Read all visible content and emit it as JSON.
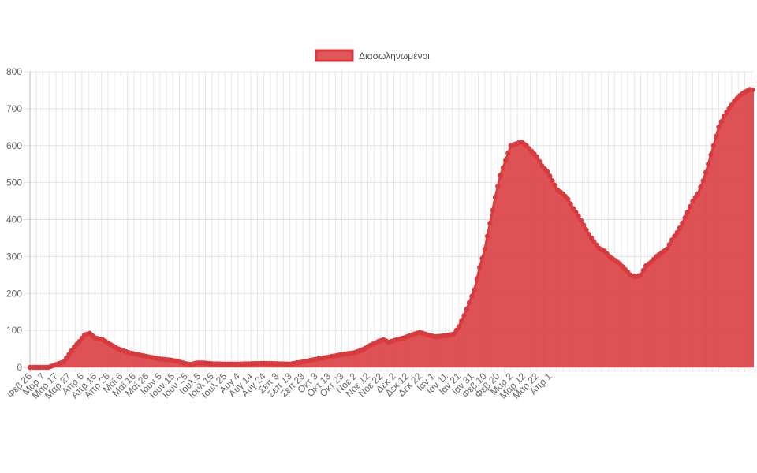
{
  "chart_data": {
    "type": "area",
    "title": "",
    "xlabel": "",
    "ylabel": "",
    "ylim": [
      0,
      800
    ],
    "y_ticks": [
      "0",
      "100",
      "200",
      "300",
      "400",
      "500",
      "600",
      "700",
      "800"
    ],
    "grid": true,
    "legend_position": "top-center",
    "x_tick_labels": [
      "Φεβ 26",
      "Μαρ 7",
      "Μαρ 17",
      "Μαρ 27",
      "Απρ 6",
      "Απρ 16",
      "Απρ 26",
      "Μαΐ 6",
      "Μαΐ 16",
      "Μαΐ 26",
      "Ιουν 5",
      "Ιουν 15",
      "Ιουν 25",
      "Ιουλ 5",
      "Ιουλ 15",
      "Ιουλ 25",
      "Αυγ 4",
      "Αυγ 14",
      "Αυγ 24",
      "Σεπ 3",
      "Σεπ 13",
      "Σεπ 23",
      "Οκτ 3",
      "Οκτ 13",
      "Οκτ 23",
      "Νοε 2",
      "Νοε 12",
      "Νοε 22",
      "Δεκ 2",
      "Δεκ 12",
      "Δεκ 22",
      "Ιαν 1",
      "Ιαν 11",
      "Ιαν 21",
      "Ιαν 31",
      "Φεβ 10",
      "Φεβ 20",
      "Μαρ 2",
      "Μαρ 12",
      "Μαρ 22",
      "Απρ 1"
    ],
    "series": [
      {
        "name": "Διασωληνωμένοι",
        "color": "#d93a3e",
        "fill": "#d93a3e",
        "anchors": [
          [
            0,
            0
          ],
          [
            8,
            0
          ],
          [
            14,
            0
          ],
          [
            18,
            5
          ],
          [
            22,
            10
          ],
          [
            26,
            15
          ],
          [
            30,
            35
          ],
          [
            34,
            55
          ],
          [
            38,
            70
          ],
          [
            42,
            88
          ],
          [
            46,
            92
          ],
          [
            50,
            80
          ],
          [
            56,
            75
          ],
          [
            62,
            62
          ],
          [
            68,
            50
          ],
          [
            76,
            40
          ],
          [
            84,
            34
          ],
          [
            92,
            28
          ],
          [
            100,
            23
          ],
          [
            108,
            20
          ],
          [
            114,
            16
          ],
          [
            120,
            10
          ],
          [
            124,
            8
          ],
          [
            128,
            12
          ],
          [
            134,
            12
          ],
          [
            140,
            10
          ],
          [
            150,
            9
          ],
          [
            160,
            9
          ],
          [
            170,
            10
          ],
          [
            180,
            11
          ],
          [
            190,
            10
          ],
          [
            200,
            9
          ],
          [
            210,
            15
          ],
          [
            220,
            22
          ],
          [
            230,
            28
          ],
          [
            240,
            35
          ],
          [
            250,
            40
          ],
          [
            256,
            48
          ],
          [
            262,
            60
          ],
          [
            268,
            70
          ],
          [
            272,
            75
          ],
          [
            276,
            68
          ],
          [
            282,
            75
          ],
          [
            288,
            80
          ],
          [
            294,
            88
          ],
          [
            300,
            95
          ],
          [
            306,
            88
          ],
          [
            312,
            83
          ],
          [
            320,
            86
          ],
          [
            326,
            90
          ],
          [
            330,
            110
          ],
          [
            334,
            140
          ],
          [
            338,
            175
          ],
          [
            342,
            210
          ],
          [
            346,
            270
          ],
          [
            350,
            320
          ],
          [
            354,
            390
          ],
          [
            358,
            460
          ],
          [
            362,
            520
          ],
          [
            366,
            560
          ],
          [
            370,
            600
          ],
          [
            374,
            605
          ],
          [
            378,
            610
          ],
          [
            382,
            600
          ],
          [
            386,
            585
          ],
          [
            390,
            570
          ],
          [
            394,
            545
          ],
          [
            398,
            530
          ],
          [
            402,
            505
          ],
          [
            406,
            480
          ],
          [
            410,
            470
          ],
          [
            414,
            455
          ],
          [
            418,
            430
          ],
          [
            422,
            410
          ],
          [
            426,
            385
          ],
          [
            430,
            360
          ],
          [
            434,
            340
          ],
          [
            438,
            322
          ],
          [
            442,
            315
          ],
          [
            446,
            300
          ],
          [
            450,
            290
          ],
          [
            454,
            280
          ],
          [
            458,
            265
          ],
          [
            462,
            250
          ],
          [
            466,
            245
          ],
          [
            470,
            250
          ],
          [
            474,
            275
          ],
          [
            478,
            285
          ],
          [
            482,
            300
          ],
          [
            486,
            310
          ],
          [
            490,
            320
          ],
          [
            494,
            345
          ],
          [
            498,
            365
          ],
          [
            502,
            390
          ],
          [
            506,
            420
          ],
          [
            510,
            450
          ],
          [
            514,
            470
          ],
          [
            518,
            505
          ],
          [
            522,
            550
          ],
          [
            526,
            600
          ],
          [
            530,
            650
          ],
          [
            534,
            680
          ],
          [
            538,
            700
          ],
          [
            542,
            720
          ],
          [
            546,
            735
          ],
          [
            550,
            745
          ],
          [
            554,
            752
          ],
          [
            557,
            750
          ]
        ]
      }
    ]
  }
}
